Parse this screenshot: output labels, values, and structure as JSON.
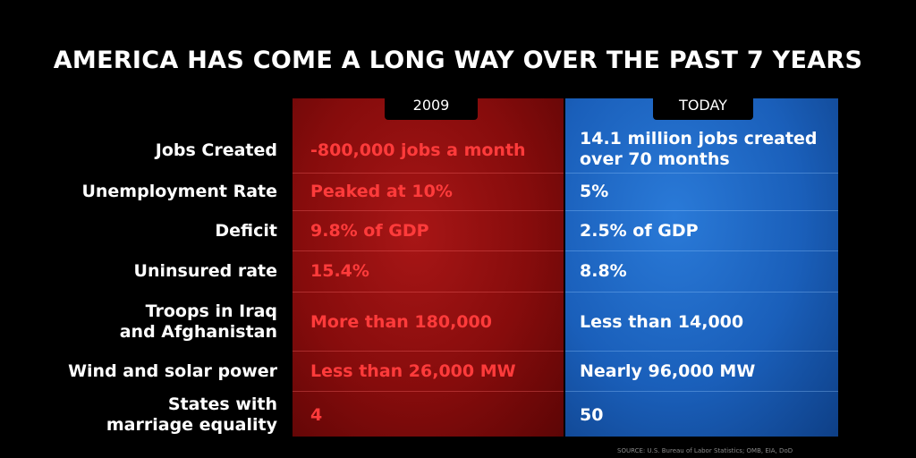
{
  "title": "AMERICA HAS COME A LONG WAY OVER THE PAST 7 YEARS",
  "columns": {
    "left_header": "2009",
    "right_header": "TODAY"
  },
  "colors": {
    "red_panel": "#860c0c",
    "blue_panel": "#1a5fba",
    "red_text": "#ff3b3b"
  },
  "rows": [
    {
      "label": "Jobs Created",
      "then": "-800,000 jobs a month",
      "now": "14.1 million jobs created over 70 months"
    },
    {
      "label": "Unemployment Rate",
      "then": "Peaked at 10%",
      "now": "5%"
    },
    {
      "label": "Deficit",
      "then": "9.8% of GDP",
      "now": "2.5% of GDP"
    },
    {
      "label": "Uninsured rate",
      "then": "15.4%",
      "now": "8.8%"
    },
    {
      "label": "Troops in Iraq and Afghanistan",
      "then": "More than 180,000",
      "now": "Less than 14,000"
    },
    {
      "label": "Wind and solar power",
      "then": "Less than 26,000 MW",
      "now": "Nearly 96,000 MW"
    },
    {
      "label": "States with marriage equality",
      "then": "4",
      "now": "50"
    }
  ],
  "source": "SOURCE: U.S. Bureau of Labor Statistics; OMB, EIA, DoD"
}
